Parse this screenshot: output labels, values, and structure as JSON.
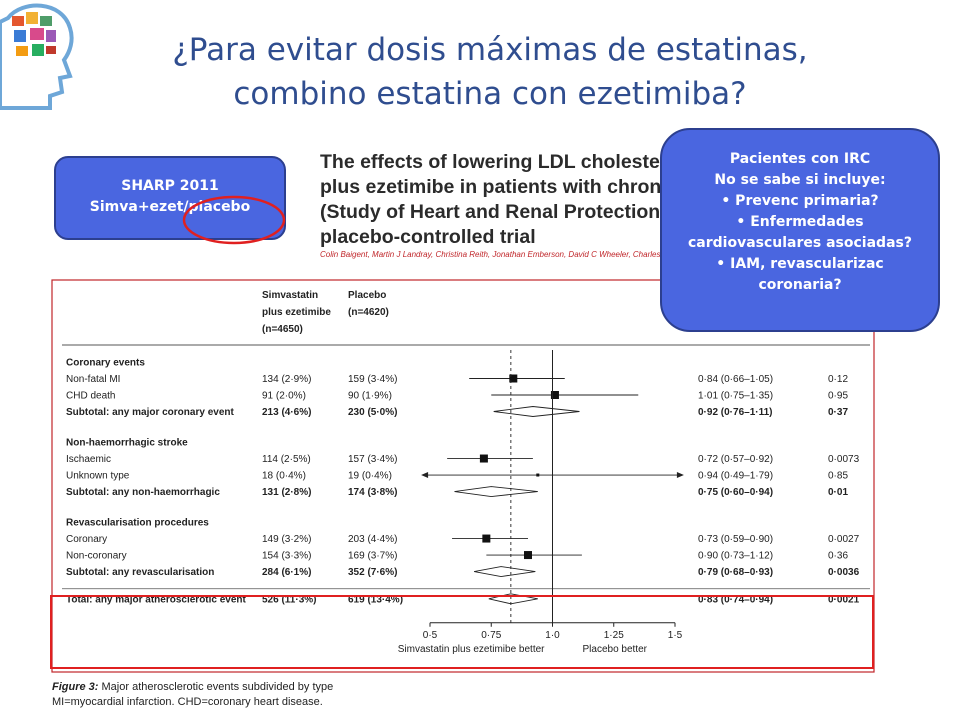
{
  "slide": {
    "title_line1": "¿Para evitar dosis máximas de estatinas,",
    "title_line2": "combino estatina con ezetimiba?"
  },
  "sharp_box": {
    "line1": "SHARP 2011",
    "line2": "Simva+ezet/placebo"
  },
  "irc_box": {
    "lines": [
      "Pacientes con IRC",
      "No se sabe si incluye:",
      "• Prevenc primaria?",
      "• Enfermedades",
      "cardiovasculares asociadas?",
      "• IAM, revascularizac",
      "coronaria?"
    ]
  },
  "paper": {
    "title_lines": [
      "The effects of lowering LDL cholesterol",
      "plus ezetimibe in patients with chronic",
      "(Study of Heart and Renal Protection):",
      "placebo-controlled trial"
    ],
    "authors": "Colin Baigent, Martin J Landray, Christina Reith, Jonathan Emberson, David C Wheeler, Charles"
  },
  "table": {
    "col1_header": [
      "Simvastatin",
      "plus ezetimibe",
      "(n=4650)"
    ],
    "col2_header": [
      "Placebo",
      "(n=4620)"
    ],
    "groups": [
      {
        "heading": "Coronary events",
        "rows": [
          {
            "label": "Non-fatal MI",
            "a": "134 (2·9%)",
            "b": "159 (3·4%)",
            "rr": "0·84 (0·66–1·05)",
            "p": "0·12",
            "est": 0.84,
            "lo": 0.66,
            "hi": 1.05,
            "bold": false
          },
          {
            "label": "CHD death",
            "a": "91 (2·0%)",
            "b": "90 (1·9%)",
            "rr": "1·01 (0·75–1·35)",
            "p": "0·95",
            "est": 1.01,
            "lo": 0.75,
            "hi": 1.35,
            "bold": false
          },
          {
            "label": "Subtotal: any major coronary event",
            "a": "213 (4·6%)",
            "b": "230 (5·0%)",
            "rr": "0·92 (0·76–1·11)",
            "p": "0·37",
            "est": 0.92,
            "lo": 0.76,
            "hi": 1.11,
            "bold": true
          }
        ]
      },
      {
        "heading": "Non-haemorrhagic stroke",
        "rows": [
          {
            "label": "Ischaemic",
            "a": "114 (2·5%)",
            "b": "157 (3·4%)",
            "rr": "0·72 (0·57–0·92)",
            "p": "0·0073",
            "est": 0.72,
            "lo": 0.57,
            "hi": 0.92,
            "bold": false
          },
          {
            "label": "Unknown type",
            "a": "18 (0·4%)",
            "b": "19 (0·4%)",
            "rr": "0·94 (0·49–1·79)",
            "p": "0·85",
            "est": 0.94,
            "lo": 0.49,
            "hi": 1.79,
            "bold": false
          },
          {
            "label": "Subtotal: any non-haemorrhagic",
            "a": "131 (2·8%)",
            "b": "174 (3·8%)",
            "rr": "0·75 (0·60–0·94)",
            "p": "0·01",
            "est": 0.75,
            "lo": 0.6,
            "hi": 0.94,
            "bold": true
          }
        ]
      },
      {
        "heading": "Revascularisation procedures",
        "rows": [
          {
            "label": "Coronary",
            "a": "149 (3·2%)",
            "b": "203 (4·4%)",
            "rr": "0·73 (0·59–0·90)",
            "p": "0·0027",
            "est": 0.73,
            "lo": 0.59,
            "hi": 0.9,
            "bold": false
          },
          {
            "label": "Non-coronary",
            "a": "154 (3·3%)",
            "b": "169 (3·7%)",
            "rr": "0·90 (0·73–1·12)",
            "p": "0·36",
            "est": 0.9,
            "lo": 0.73,
            "hi": 1.12,
            "bold": false
          },
          {
            "label": "Subtotal: any revascularisation",
            "a": "284 (6·1%)",
            "b": "352 (7·6%)",
            "rr": "0·79 (0·68–0·93)",
            "p": "0·0036",
            "est": 0.79,
            "lo": 0.68,
            "hi": 0.93,
            "bold": true
          }
        ]
      }
    ],
    "total": {
      "label": "Total: any major atherosclerotic event",
      "a": "526 (11·3%)",
      "b": "619 (13·4%)",
      "rr": "0·83 (0·74–0·94)",
      "p": "0·0021",
      "est": 0.83,
      "lo": 0.74,
      "hi": 0.94,
      "bold": true
    },
    "axis": {
      "ticks": [
        0.5,
        0.75,
        1.0,
        1.25,
        1.5
      ],
      "tick_labels": [
        "0·5",
        "0·75",
        "1·0",
        "1·25",
        "1·5"
      ],
      "left_label": "Simvastatin plus ezetimibe better",
      "right_label": "Placebo better",
      "reference_line": 1.0,
      "overall_dashed_line": 0.83,
      "xlim": [
        0.5,
        1.5
      ]
    }
  },
  "caption": {
    "fig_label": "Figure 3:",
    "fig_title": " Major atherosclerotic events subdivided by type",
    "footnote": "MI=myocardial infarction. CHD=coronary heart disease."
  },
  "colors": {
    "title": "#2f4d8f",
    "box_fill": "#4a66e0",
    "highlight": "#e02020",
    "frame": "#c0262a"
  }
}
